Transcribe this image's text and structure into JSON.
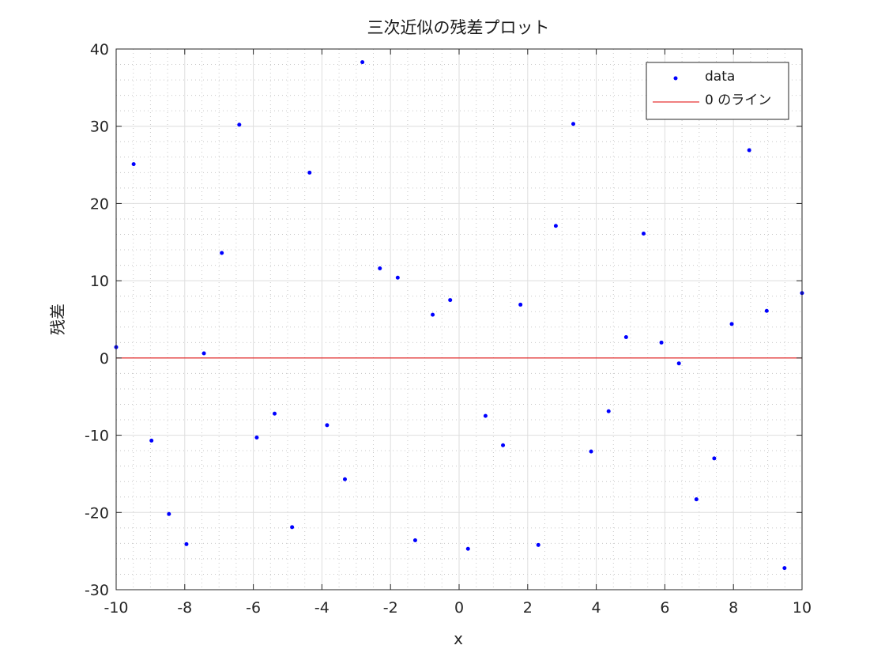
{
  "chart_data": {
    "type": "scatter",
    "title": "三次近似の残差プロット",
    "xlabel": "x",
    "ylabel": "残差",
    "xlim": [
      -10,
      10
    ],
    "ylim": [
      -30,
      40
    ],
    "x_ticks": [
      -10,
      -8,
      -6,
      -4,
      -2,
      0,
      2,
      4,
      6,
      8,
      10
    ],
    "y_ticks": [
      -30,
      -20,
      -10,
      0,
      10,
      20,
      30,
      40
    ],
    "x_tick_labels": [
      "-10",
      "-8",
      "-6",
      "-4",
      "-2",
      "0",
      "2",
      "4",
      "6",
      "8",
      "10"
    ],
    "y_tick_labels": [
      "-30",
      "-20",
      "-10",
      "0",
      "10",
      "20",
      "30",
      "40"
    ],
    "grid": true,
    "minor_grid": true,
    "legend_position": "top-right",
    "series": [
      {
        "name": "data",
        "kind": "scatter",
        "color": "#0000ff",
        "x": [
          -10.0,
          -9.49,
          -8.97,
          -8.46,
          -7.95,
          -7.44,
          -6.92,
          -6.41,
          -5.9,
          -5.38,
          -4.87,
          -4.36,
          -3.85,
          -3.33,
          -2.82,
          -2.31,
          -1.79,
          -1.28,
          -0.77,
          -0.26,
          0.26,
          0.77,
          1.28,
          1.79,
          2.31,
          2.82,
          3.33,
          3.85,
          4.36,
          4.87,
          5.38,
          5.9,
          6.41,
          6.92,
          7.44,
          7.95,
          8.46,
          8.97,
          9.49,
          10.0
        ],
        "y": [
          1.4,
          25.1,
          -10.7,
          -20.2,
          -24.1,
          0.6,
          13.6,
          30.2,
          -10.3,
          -7.2,
          -21.9,
          24.0,
          -8.7,
          -15.7,
          38.3,
          11.6,
          10.4,
          -23.6,
          5.6,
          7.5,
          -24.7,
          -7.5,
          -11.3,
          6.9,
          -24.2,
          17.1,
          30.3,
          -12.1,
          -6.9,
          2.7,
          16.1,
          2.0,
          -0.7,
          -18.3,
          -13.0,
          4.4,
          26.9,
          6.1,
          -27.2,
          8.4
        ]
      },
      {
        "name": "0 のライン",
        "kind": "line",
        "color": "#e00000",
        "x": [
          -10,
          10
        ],
        "y": [
          0,
          0
        ]
      }
    ]
  }
}
